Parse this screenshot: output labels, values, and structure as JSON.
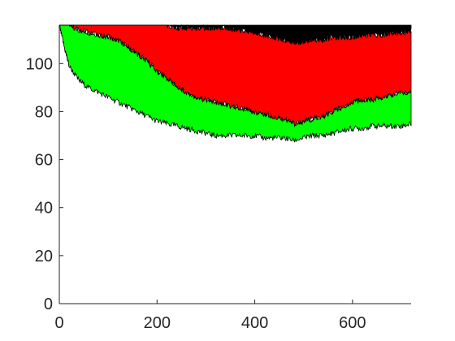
{
  "chart_data": {
    "type": "area",
    "title": "",
    "xlabel": "",
    "ylabel": "",
    "xlim": [
      0,
      720
    ],
    "ylim": [
      0,
      116
    ],
    "xticks": [
      0,
      200,
      400,
      600
    ],
    "yticks": [
      0,
      20,
      40,
      60,
      80,
      100
    ],
    "grid": false,
    "legend": "none",
    "x": [
      0,
      10,
      20,
      40,
      60,
      80,
      100,
      120,
      140,
      160,
      180,
      200,
      220,
      240,
      260,
      280,
      300,
      320,
      340,
      360,
      380,
      400,
      420,
      440,
      460,
      480,
      500,
      520,
      540,
      560,
      580,
      600,
      620,
      640,
      660,
      680,
      700,
      720
    ],
    "series": [
      {
        "color": "#00ff00",
        "upper": [
          116,
          116,
          116,
          114,
          113,
          112,
          111,
          110,
          107,
          104,
          101,
          97,
          94,
          91,
          88,
          86,
          85,
          84,
          83,
          82,
          81,
          80,
          79,
          78,
          77,
          75,
          76,
          77,
          78,
          80,
          82,
          84,
          85,
          85,
          86,
          87,
          88,
          88
        ],
        "lower": [
          116,
          107,
          99,
          93,
          90,
          88,
          86,
          84,
          82,
          80,
          78,
          76,
          75,
          74,
          73,
          72,
          71,
          70,
          70,
          70,
          70,
          70,
          69,
          69,
          69,
          68,
          69,
          70,
          70,
          71,
          72,
          73,
          73,
          74,
          74,
          74,
          74,
          75
        ]
      },
      {
        "color": "#ff0000",
        "upper": [
          116,
          116,
          116,
          116,
          116,
          116,
          116,
          116,
          116,
          116,
          116,
          116,
          116,
          115,
          115,
          115,
          115,
          115,
          115,
          114,
          114,
          113,
          112,
          111,
          110,
          109,
          109,
          110,
          110,
          111,
          111,
          111,
          112,
          112,
          112,
          113,
          113,
          114
        ],
        "lower": [
          116,
          116,
          116,
          114,
          113,
          112,
          111,
          110,
          107,
          104,
          101,
          97,
          94,
          91,
          88,
          86,
          85,
          84,
          83,
          82,
          81,
          80,
          79,
          78,
          77,
          75,
          76,
          77,
          78,
          80,
          82,
          84,
          85,
          85,
          86,
          87,
          88,
          88
        ]
      },
      {
        "color": "#000000",
        "upper": [
          116,
          116,
          116,
          116,
          116,
          116,
          116,
          116,
          116,
          116,
          116,
          116,
          116,
          116,
          116,
          116,
          116,
          116,
          116,
          116,
          116,
          116,
          116,
          116,
          116,
          116,
          116,
          116,
          116,
          116,
          116,
          116,
          116,
          116,
          116,
          116,
          116,
          116
        ],
        "lower": [
          116,
          116,
          116,
          116,
          116,
          116,
          116,
          116,
          116,
          116,
          116,
          116,
          116,
          115,
          115,
          115,
          115,
          115,
          115,
          114,
          114,
          113,
          112,
          111,
          110,
          109,
          109,
          110,
          110,
          111,
          111,
          111,
          112,
          112,
          112,
          113,
          113,
          114
        ]
      }
    ]
  }
}
